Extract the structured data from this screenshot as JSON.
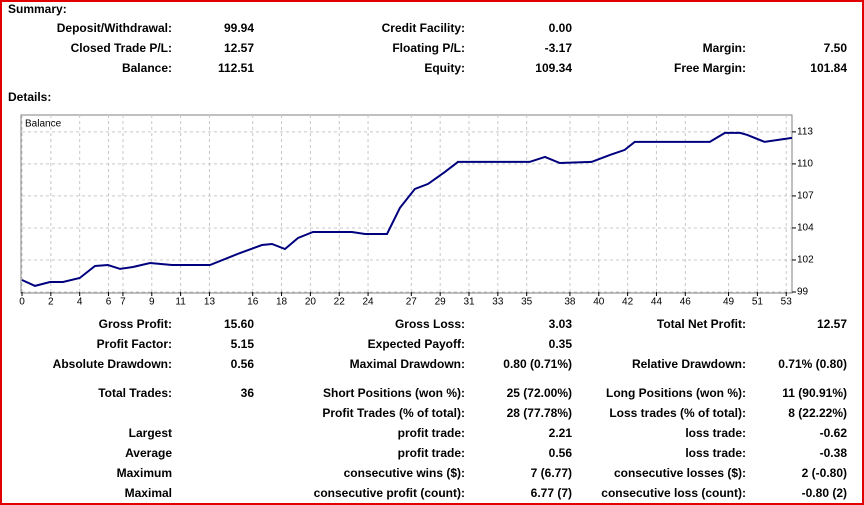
{
  "summary": {
    "title": "Summary:",
    "rows": [
      [
        {
          "label": "Deposit/Withdrawal:",
          "value": "99.94"
        },
        {
          "label": "Credit Facility:",
          "value": "0.00"
        },
        null
      ],
      [
        {
          "label": "Closed Trade P/L:",
          "value": "12.57"
        },
        {
          "label": "Floating P/L:",
          "value": "-3.17"
        },
        {
          "label": "Margin:",
          "value": "7.50"
        }
      ],
      [
        {
          "label": "Balance:",
          "value": "112.51"
        },
        {
          "label": "Equity:",
          "value": "109.34"
        },
        {
          "label": "Free Margin:",
          "value": "101.84"
        }
      ]
    ]
  },
  "details_title": "Details:",
  "chart_data": {
    "type": "line",
    "x": [
      0,
      0.9,
      1.94,
      2.84,
      4.0,
      5.06,
      5.96,
      6.8,
      7.7,
      8.88,
      10.4,
      13.04,
      15.12,
      16.64,
      17.34,
      18.24,
      19.14,
      20.18,
      22.88,
      23.79,
      25.31,
      26.21,
      27.25,
      28.16,
      29.33,
      30.24,
      35.2,
      36.27,
      37.3,
      39.5,
      40.78,
      41.8,
      42.5,
      47.7,
      48.75,
      49.8,
      50.3,
      51.5,
      53.4
    ],
    "series": [
      {
        "name": "Balance",
        "color": "#00007f",
        "values": [
          99.93,
          99.42,
          99.76,
          99.76,
          100.1,
          101.13,
          101.22,
          100.88,
          101.05,
          101.39,
          101.22,
          101.22,
          102.25,
          102.94,
          103.02,
          102.59,
          103.54,
          104.05,
          104.05,
          103.88,
          103.88,
          106.12,
          107.75,
          108.18,
          109.21,
          110.07,
          110.07,
          110.5,
          109.98,
          110.07,
          110.67,
          111.1,
          111.79,
          111.79,
          112.56,
          112.56,
          112.39,
          111.79,
          112.13
        ]
      }
    ],
    "xlim": [
      0,
      53.4
    ],
    "xticks": [
      0,
      2,
      4,
      6,
      7,
      9,
      11,
      13,
      16,
      18,
      20,
      22,
      24,
      27,
      29,
      31,
      33,
      35,
      38,
      40,
      42,
      44,
      46,
      49,
      51,
      53
    ],
    "ylim": [
      98.9,
      114.1
    ],
    "yticks": [
      {
        "value": 98.9,
        "label": "99"
      },
      {
        "value": 101.65,
        "label": "102"
      },
      {
        "value": 104.4,
        "label": "104"
      },
      {
        "value": 107.15,
        "label": "107"
      },
      {
        "value": 109.9,
        "label": "110"
      },
      {
        "value": 112.65,
        "label": "113"
      }
    ],
    "grid": true
  },
  "report": {
    "rows": [
      [
        {
          "label": "Gross Profit:",
          "value": "15.60"
        },
        {
          "label": "Gross Loss:",
          "value": "3.03"
        },
        {
          "label": "Total Net Profit:",
          "value": "12.57"
        }
      ],
      [
        {
          "label": "Profit Factor:",
          "value": "5.15"
        },
        {
          "label": "Expected Payoff:",
          "value": "0.35"
        },
        null
      ],
      [
        {
          "label": "Absolute Drawdown:",
          "value": "0.56"
        },
        {
          "label": "Maximal Drawdown:",
          "value": "0.80 (0.71%)"
        },
        {
          "label": "Relative Drawdown:",
          "value": "0.71% (0.80)"
        }
      ],
      [
        {
          "label": "Total Trades:",
          "value": "36"
        },
        {
          "label": "Short Positions (won %):",
          "value": "25 (72.00%)"
        },
        {
          "label": "Long Positions (won %):",
          "value": "11 (90.91%)"
        }
      ],
      [
        null,
        {
          "label": "Profit Trades (% of total):",
          "value": "28 (77.78%)"
        },
        {
          "label": "Loss trades (% of total):",
          "value": "8 (22.22%)"
        }
      ],
      [
        {
          "label": "Largest"
        },
        {
          "label": "profit trade:",
          "value": "2.21"
        },
        {
          "label": "loss trade:",
          "value": "-0.62"
        }
      ],
      [
        {
          "label": "Average"
        },
        {
          "label": "profit trade:",
          "value": "0.56"
        },
        {
          "label": "loss trade:",
          "value": "-0.38"
        }
      ],
      [
        {
          "label": "Maximum"
        },
        {
          "label": "consecutive wins ($):",
          "value": "7 (6.77)"
        },
        {
          "label": "consecutive losses ($):",
          "value": "2 (-0.80)"
        }
      ],
      [
        {
          "label": "Maximal"
        },
        {
          "label": "consecutive profit (count):",
          "value": "6.77 (7)"
        },
        {
          "label": "consecutive loss (count):",
          "value": "-0.80 (2)"
        }
      ]
    ]
  }
}
